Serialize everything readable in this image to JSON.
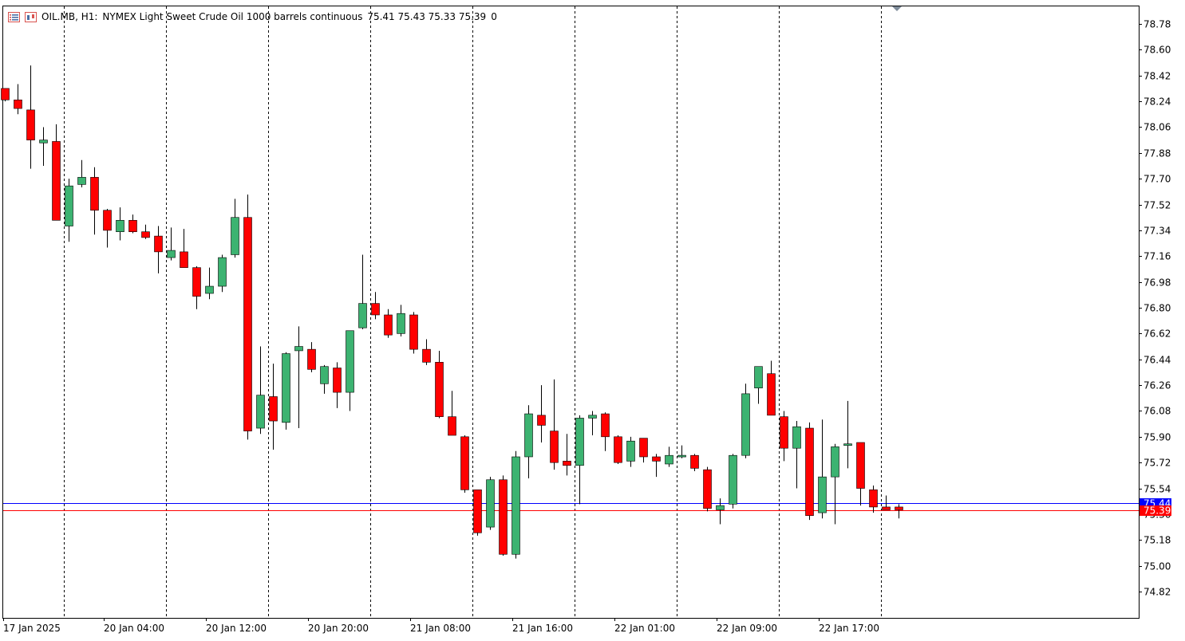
{
  "header": {
    "symbol_timeframe": "OIL.MB, H1:",
    "description": "NYMEX Light Sweet Crude Oil 1000 barrels continuous",
    "ohlc": "75.41 75.43 75.33 75.39",
    "volume": "0",
    "icons": [
      "list-icon",
      "chart-window-icon"
    ]
  },
  "price_labels": {
    "ask": "75.44",
    "bid": "75.39",
    "ask_color": "#0000ff",
    "bid_color": "#ff0000"
  },
  "colors": {
    "bull_body": "#3cb371",
    "bear_body": "#ff0000",
    "grid_separator": "#000000",
    "background": "#ffffff"
  },
  "chart_data": {
    "type": "candlestick",
    "y_ticks": [
      "78.78",
      "78.60",
      "78.42",
      "78.24",
      "78.06",
      "77.88",
      "77.70",
      "77.52",
      "77.34",
      "77.16",
      "76.98",
      "76.80",
      "76.62",
      "76.44",
      "76.26",
      "76.08",
      "75.90",
      "75.72",
      "75.54",
      "75.36",
      "75.18",
      "75.00",
      "74.82"
    ],
    "ylim": [
      74.65,
      78.9
    ],
    "x_labels": [
      "17 Jan 2025",
      "20 Jan 04:00",
      "20 Jan 12:00",
      "20 Jan 20:00",
      "21 Jan 08:00",
      "21 Jan 16:00",
      "22 Jan 01:00",
      "22 Jan 09:00",
      "22 Jan 17:00"
    ],
    "ask_price": 75.44,
    "bid_price": 75.39,
    "candles": [
      {
        "o": 78.33,
        "h": 78.33,
        "l": 78.24,
        "c": 78.25
      },
      {
        "o": 78.25,
        "h": 78.36,
        "l": 78.15,
        "c": 78.19
      },
      {
        "o": 78.18,
        "h": 78.49,
        "l": 77.77,
        "c": 77.97
      },
      {
        "o": 77.95,
        "h": 78.06,
        "l": 77.79,
        "c": 77.97
      },
      {
        "o": 77.96,
        "h": 78.08,
        "l": 77.41,
        "c": 77.41
      },
      {
        "o": 77.37,
        "h": 77.7,
        "l": 77.26,
        "c": 77.65
      },
      {
        "o": 77.66,
        "h": 77.83,
        "l": 77.64,
        "c": 77.71
      },
      {
        "o": 77.71,
        "h": 77.78,
        "l": 77.31,
        "c": 77.48
      },
      {
        "o": 77.48,
        "h": 77.49,
        "l": 77.22,
        "c": 77.34
      },
      {
        "o": 77.33,
        "h": 77.5,
        "l": 77.27,
        "c": 77.41
      },
      {
        "o": 77.41,
        "h": 77.45,
        "l": 77.32,
        "c": 77.33
      },
      {
        "o": 77.33,
        "h": 77.38,
        "l": 77.28,
        "c": 77.29
      },
      {
        "o": 77.3,
        "h": 77.37,
        "l": 77.04,
        "c": 77.19
      },
      {
        "o": 77.15,
        "h": 77.36,
        "l": 77.13,
        "c": 77.2
      },
      {
        "o": 77.19,
        "h": 77.35,
        "l": 77.09,
        "c": 77.08
      },
      {
        "o": 77.08,
        "h": 77.09,
        "l": 76.79,
        "c": 76.88
      },
      {
        "o": 76.9,
        "h": 77.08,
        "l": 76.86,
        "c": 76.95
      },
      {
        "o": 76.95,
        "h": 77.17,
        "l": 76.91,
        "c": 77.15
      },
      {
        "o": 77.17,
        "h": 77.56,
        "l": 77.15,
        "c": 77.43
      },
      {
        "o": 77.43,
        "h": 77.59,
        "l": 75.88,
        "c": 75.94
      },
      {
        "o": 75.96,
        "h": 76.53,
        "l": 75.92,
        "c": 76.19
      },
      {
        "o": 76.18,
        "h": 76.41,
        "l": 75.81,
        "c": 76.01
      },
      {
        "o": 76.0,
        "h": 76.49,
        "l": 75.95,
        "c": 76.48
      },
      {
        "o": 76.5,
        "h": 76.67,
        "l": 75.96,
        "c": 76.53
      },
      {
        "o": 76.51,
        "h": 76.56,
        "l": 76.35,
        "c": 76.37
      },
      {
        "o": 76.27,
        "h": 76.4,
        "l": 76.2,
        "c": 76.39
      },
      {
        "o": 76.38,
        "h": 76.42,
        "l": 76.1,
        "c": 76.21
      },
      {
        "o": 76.21,
        "h": 76.64,
        "l": 76.08,
        "c": 76.64
      },
      {
        "o": 76.66,
        "h": 77.17,
        "l": 76.65,
        "c": 76.83
      },
      {
        "o": 76.83,
        "h": 76.91,
        "l": 76.72,
        "c": 76.75
      },
      {
        "o": 76.75,
        "h": 76.79,
        "l": 76.59,
        "c": 76.61
      },
      {
        "o": 76.62,
        "h": 76.82,
        "l": 76.6,
        "c": 76.76
      },
      {
        "o": 76.75,
        "h": 76.77,
        "l": 76.48,
        "c": 76.51
      },
      {
        "o": 76.51,
        "h": 76.58,
        "l": 76.4,
        "c": 76.42
      },
      {
        "o": 76.42,
        "h": 76.5,
        "l": 76.03,
        "c": 76.04
      },
      {
        "o": 76.04,
        "h": 76.22,
        "l": 75.91,
        "c": 75.91
      },
      {
        "o": 75.9,
        "h": 75.91,
        "l": 75.51,
        "c": 75.53
      },
      {
        "o": 75.53,
        "h": 75.53,
        "l": 75.21,
        "c": 75.23
      },
      {
        "o": 75.27,
        "h": 75.62,
        "l": 75.25,
        "c": 75.6
      },
      {
        "o": 75.6,
        "h": 75.63,
        "l": 75.07,
        "c": 75.08
      },
      {
        "o": 75.08,
        "h": 75.8,
        "l": 75.05,
        "c": 75.76
      },
      {
        "o": 75.76,
        "h": 76.12,
        "l": 75.61,
        "c": 76.06
      },
      {
        "o": 76.05,
        "h": 76.26,
        "l": 75.86,
        "c": 75.98
      },
      {
        "o": 75.94,
        "h": 76.3,
        "l": 75.67,
        "c": 75.72
      },
      {
        "o": 75.73,
        "h": 75.92,
        "l": 75.63,
        "c": 75.7
      },
      {
        "o": 75.7,
        "h": 76.05,
        "l": 75.43,
        "c": 76.03
      },
      {
        "o": 76.03,
        "h": 76.08,
        "l": 75.91,
        "c": 76.05
      },
      {
        "o": 76.06,
        "h": 76.07,
        "l": 75.8,
        "c": 75.9
      },
      {
        "o": 75.9,
        "h": 75.91,
        "l": 75.71,
        "c": 75.72
      },
      {
        "o": 75.73,
        "h": 75.9,
        "l": 75.69,
        "c": 75.87
      },
      {
        "o": 75.89,
        "h": 75.89,
        "l": 75.72,
        "c": 75.76
      },
      {
        "o": 75.76,
        "h": 75.78,
        "l": 75.62,
        "c": 75.73
      },
      {
        "o": 75.71,
        "h": 75.83,
        "l": 75.69,
        "c": 75.77
      },
      {
        "o": 75.76,
        "h": 75.84,
        "l": 75.75,
        "c": 75.77
      },
      {
        "o": 75.77,
        "h": 75.78,
        "l": 75.66,
        "c": 75.68
      },
      {
        "o": 75.67,
        "h": 75.69,
        "l": 75.38,
        "c": 75.4
      },
      {
        "o": 75.39,
        "h": 75.47,
        "l": 75.29,
        "c": 75.42
      },
      {
        "o": 75.43,
        "h": 75.78,
        "l": 75.4,
        "c": 75.77
      },
      {
        "o": 75.77,
        "h": 76.27,
        "l": 75.75,
        "c": 76.2
      },
      {
        "o": 76.24,
        "h": 76.39,
        "l": 76.13,
        "c": 76.39
      },
      {
        "o": 76.34,
        "h": 76.43,
        "l": 76.07,
        "c": 76.05
      },
      {
        "o": 76.04,
        "h": 76.08,
        "l": 75.73,
        "c": 75.82
      },
      {
        "o": 75.82,
        "h": 76.01,
        "l": 75.54,
        "c": 75.97
      },
      {
        "o": 75.96,
        "h": 76.0,
        "l": 75.32,
        "c": 75.35
      },
      {
        "o": 75.37,
        "h": 76.02,
        "l": 75.33,
        "c": 75.62
      },
      {
        "o": 75.62,
        "h": 75.85,
        "l": 75.29,
        "c": 75.83
      },
      {
        "o": 75.84,
        "h": 76.15,
        "l": 75.68,
        "c": 75.85
      },
      {
        "o": 75.86,
        "h": 75.86,
        "l": 75.42,
        "c": 75.54
      },
      {
        "o": 75.53,
        "h": 75.56,
        "l": 75.37,
        "c": 75.41
      },
      {
        "o": 75.41,
        "h": 75.49,
        "l": 75.39,
        "c": 75.39
      },
      {
        "o": 75.41,
        "h": 75.43,
        "l": 75.33,
        "c": 75.39
      }
    ]
  }
}
